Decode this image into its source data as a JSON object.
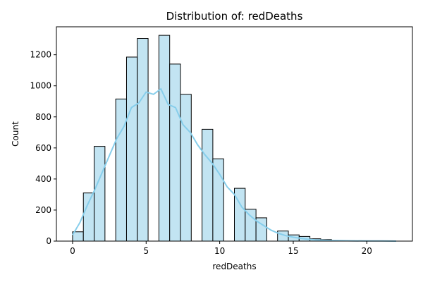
{
  "chart_data": {
    "type": "bar",
    "title": "Distribution of: redDeaths",
    "xlabel": "redDeaths",
    "ylabel": "Count",
    "xlim": [
      -1.1,
      23.1
    ],
    "ylim": [
      0,
      1380
    ],
    "xticks": [
      0,
      5,
      10,
      15,
      20
    ],
    "yticks": [
      0,
      200,
      400,
      600,
      800,
      1000,
      1200
    ],
    "grid": false,
    "bin_edges": [
      0,
      0.733,
      1.467,
      2.2,
      2.933,
      3.667,
      4.4,
      5.133,
      5.867,
      6.6,
      7.333,
      8.067,
      8.8,
      9.533,
      10.267,
      11.0,
      11.733,
      12.467,
      13.2,
      13.933,
      14.667,
      15.4,
      16.133,
      16.867,
      17.6,
      18.333,
      19.067,
      19.8,
      20.533,
      21.267,
      22.0
    ],
    "counts": [
      60,
      310,
      610,
      0,
      915,
      1185,
      1305,
      0,
      1325,
      1140,
      945,
      0,
      720,
      530,
      0,
      340,
      205,
      150,
      0,
      65,
      40,
      30,
      15,
      10,
      0,
      0,
      0,
      0,
      0,
      0
    ],
    "bar_color": "#c2e4f2",
    "bar_edge_color": "#000000",
    "kde": {
      "color": "#87ceeb",
      "x": [
        0,
        0.5,
        1,
        1.5,
        2,
        2.5,
        3,
        3.5,
        4,
        4.5,
        5,
        5.5,
        6,
        6.5,
        7,
        7.5,
        8,
        8.5,
        9,
        9.5,
        10,
        10.5,
        11,
        11.5,
        12,
        12.5,
        13,
        13.5,
        14,
        14.5,
        15,
        15.5,
        16,
        16.5,
        17,
        17.5,
        18,
        19,
        20,
        21,
        22
      ],
      "y": [
        40,
        120,
        230,
        330,
        440,
        550,
        660,
        740,
        860,
        890,
        960,
        945,
        980,
        880,
        860,
        750,
        700,
        620,
        555,
        500,
        430,
        350,
        300,
        220,
        170,
        130,
        100,
        70,
        50,
        35,
        25,
        18,
        12,
        8,
        6,
        4,
        3,
        2,
        1,
        1,
        0
      ]
    }
  }
}
